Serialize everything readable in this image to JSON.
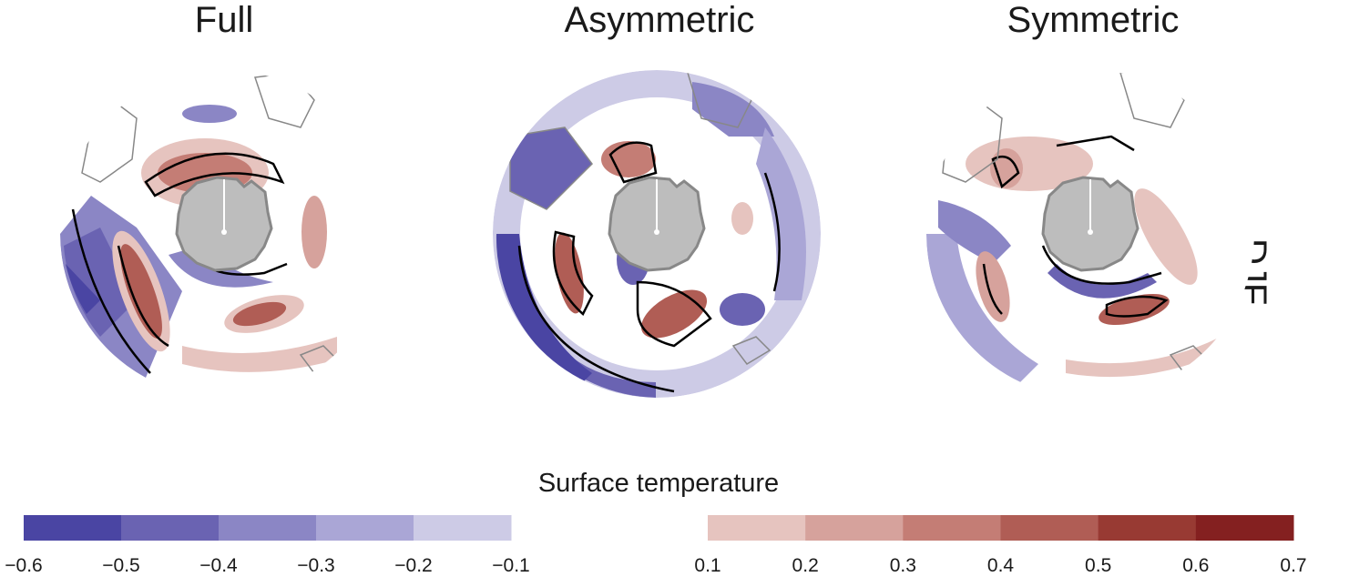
{
  "panels": [
    {
      "title": "Full"
    },
    {
      "title": "Asymmetric"
    },
    {
      "title": "Symmetric"
    }
  ],
  "season_label": "DJF",
  "colorbar": {
    "title": "Surface temperature",
    "negative": {
      "ticks": [
        "−0.6",
        "−0.5",
        "−0.4",
        "−0.3",
        "−0.2",
        "−0.1"
      ],
      "colors": [
        "#4a45a3",
        "#6a63b2",
        "#8b86c5",
        "#aaa6d6",
        "#cdcbe6"
      ]
    },
    "positive": {
      "ticks": [
        "0.1",
        "0.2",
        "0.3",
        "0.4",
        "0.5",
        "0.6",
        "0.7"
      ],
      "colors": [
        "#e6c4bf",
        "#d6a29c",
        "#c47d75",
        "#b05d55",
        "#983a33",
        "#842020"
      ]
    }
  }
}
